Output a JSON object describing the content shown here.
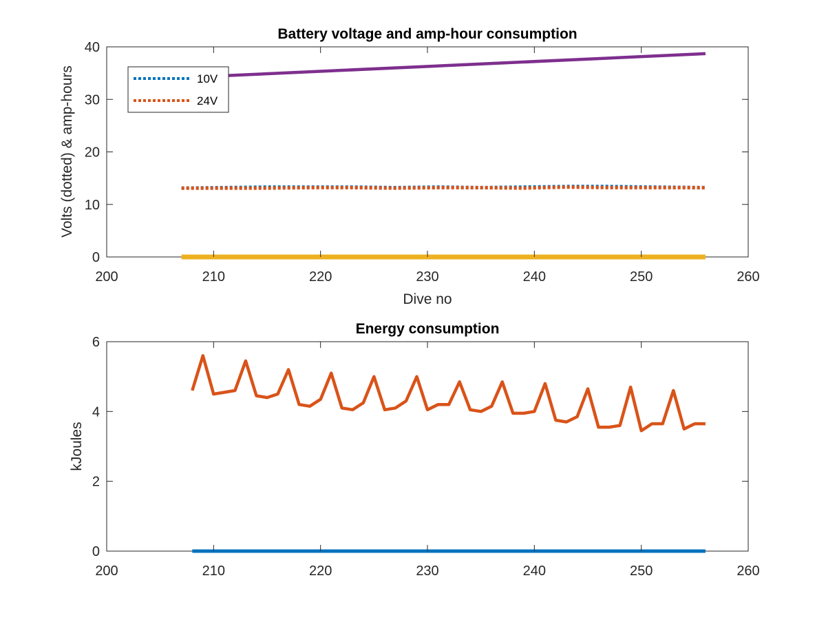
{
  "chart_data": [
    {
      "type": "line",
      "title": "Battery voltage and amp-hour consumption",
      "xlabel": "Dive no",
      "ylabel": "Volts (dotted) & amp-hours",
      "xlim": [
        200,
        260
      ],
      "ylim": [
        0,
        40
      ],
      "xticks": [
        200,
        210,
        220,
        230,
        240,
        250,
        260
      ],
      "yticks": [
        0,
        10,
        20,
        30,
        40
      ],
      "grid": false,
      "legend_position": "top-left",
      "series": [
        {
          "name": "10V",
          "style": "dotted",
          "color": "#0072BD",
          "x": [
            207,
            211,
            215,
            219,
            223,
            227,
            231,
            235,
            239,
            243,
            247,
            251,
            256
          ],
          "y": [
            13.1,
            13.2,
            13.3,
            13.3,
            13.3,
            13.2,
            13.3,
            13.2,
            13.3,
            13.4,
            13.4,
            13.3,
            13.2
          ]
        },
        {
          "name": "24V",
          "style": "dotted",
          "color": "#D95319",
          "x": [
            207,
            211,
            215,
            219,
            223,
            227,
            231,
            235,
            239,
            243,
            247,
            251,
            256
          ],
          "y": [
            13.1,
            13.1,
            13.1,
            13.2,
            13.2,
            13.1,
            13.2,
            13.2,
            13.1,
            13.3,
            13.2,
            13.2,
            13.2
          ]
        },
        {
          "style": "solid",
          "color": "#EDB120",
          "x": [
            207,
            256
          ],
          "y": [
            0,
            0
          ]
        },
        {
          "style": "solid",
          "color": "#7E2F8E",
          "x": [
            211,
            256
          ],
          "y": [
            34.5,
            38.7
          ]
        }
      ]
    },
    {
      "type": "line",
      "title": "Energy consumption",
      "xlabel": "",
      "ylabel": "kJoules",
      "xlim": [
        200,
        260
      ],
      "ylim": [
        0,
        6
      ],
      "xticks": [
        200,
        210,
        220,
        230,
        240,
        250,
        260
      ],
      "yticks": [
        0,
        2,
        4,
        6
      ],
      "grid": false,
      "series": [
        {
          "style": "solid",
          "color": "#D95319",
          "x": [
            208,
            209,
            210,
            211,
            212,
            213,
            214,
            215,
            216,
            217,
            218,
            219,
            220,
            221,
            222,
            223,
            224,
            225,
            226,
            227,
            228,
            229,
            230,
            231,
            232,
            233,
            234,
            235,
            236,
            237,
            238,
            239,
            240,
            241,
            242,
            243,
            244,
            245,
            246,
            247,
            248,
            249,
            250,
            251,
            252,
            253,
            254,
            255,
            256
          ],
          "y": [
            4.6,
            5.6,
            4.5,
            4.55,
            4.6,
            5.45,
            4.45,
            4.4,
            4.5,
            5.2,
            4.2,
            4.15,
            4.35,
            5.1,
            4.1,
            4.05,
            4.25,
            5.0,
            4.05,
            4.1,
            4.3,
            5.0,
            4.05,
            4.2,
            4.2,
            4.85,
            4.05,
            4.0,
            4.15,
            4.85,
            3.95,
            3.95,
            4.0,
            4.8,
            3.75,
            3.7,
            3.85,
            4.65,
            3.55,
            3.55,
            3.6,
            4.7,
            3.45,
            3.65,
            3.65,
            4.6,
            3.5,
            3.65,
            3.65
          ]
        },
        {
          "style": "solid",
          "color": "#0072BD",
          "x": [
            208,
            256
          ],
          "y": [
            0,
            0
          ]
        }
      ]
    }
  ]
}
